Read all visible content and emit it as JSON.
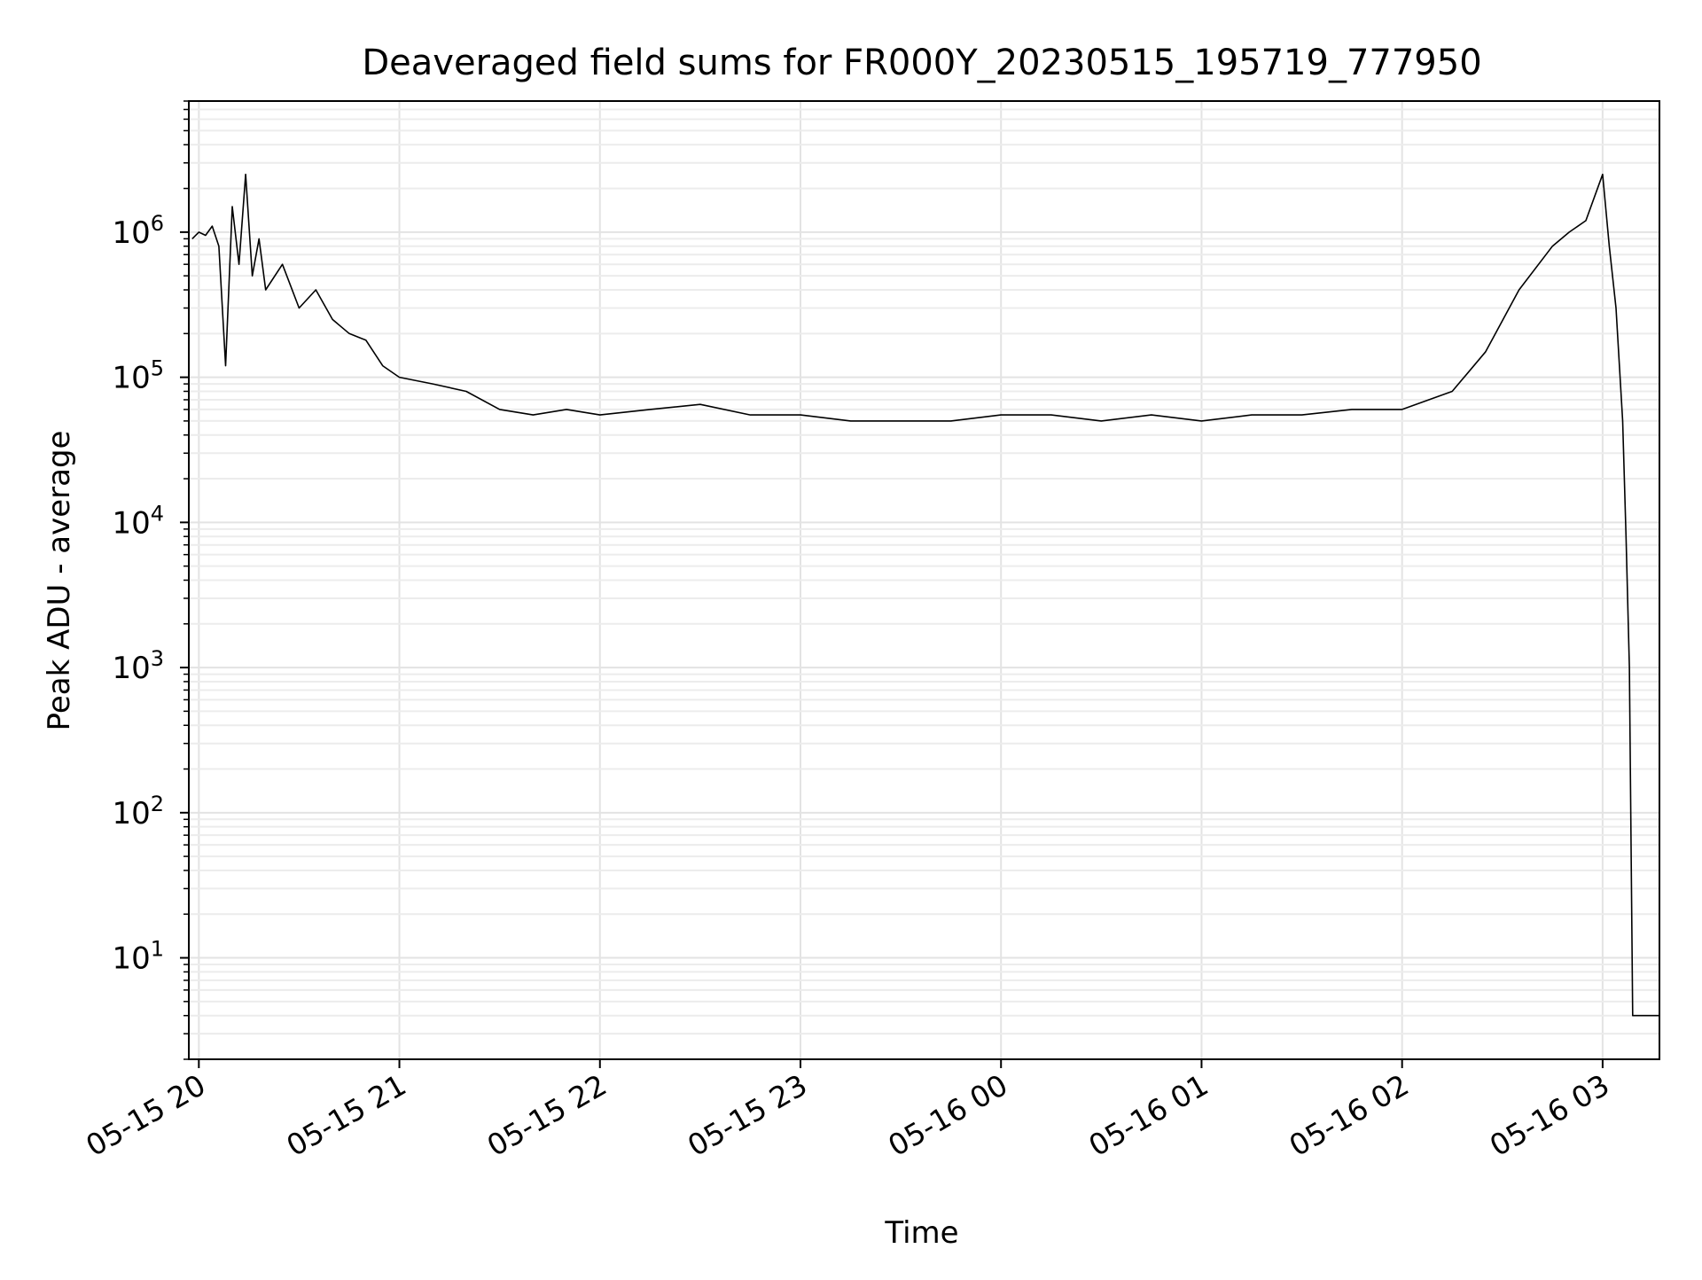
{
  "chart_data": {
    "type": "line",
    "title": "Deaveraged field sums for FR000Y_20230515_195719_777950",
    "xlabel": "Time",
    "ylabel": "Peak ADU - average",
    "yscale": "log",
    "xlim": [
      "2023-05-15 19:57",
      "2023-05-16 03:17"
    ],
    "ylim": [
      2,
      8000000
    ],
    "grid": true,
    "x_ticks": [
      {
        "t": "2023-05-15 20:00",
        "label": "05-15 20"
      },
      {
        "t": "2023-05-15 21:00",
        "label": "05-15 21"
      },
      {
        "t": "2023-05-15 22:00",
        "label": "05-15 22"
      },
      {
        "t": "2023-05-15 23:00",
        "label": "05-15 23"
      },
      {
        "t": "2023-05-16 00:00",
        "label": "05-16 00"
      },
      {
        "t": "2023-05-16 01:00",
        "label": "05-16 01"
      },
      {
        "t": "2023-05-16 02:00",
        "label": "05-16 02"
      },
      {
        "t": "2023-05-16 03:00",
        "label": "05-16 03"
      }
    ],
    "y_ticks": [
      {
        "v": 10,
        "base": "10",
        "exp": "1"
      },
      {
        "v": 100,
        "base": "10",
        "exp": "2"
      },
      {
        "v": 1000,
        "base": "10",
        "exp": "3"
      },
      {
        "v": 10000,
        "base": "10",
        "exp": "4"
      },
      {
        "v": 100000,
        "base": "10",
        "exp": "5"
      },
      {
        "v": 1000000,
        "base": "10",
        "exp": "6"
      }
    ],
    "series": [
      {
        "color": "#000000",
        "points": [
          [
            "2023-05-15 19:58",
            900000
          ],
          [
            "2023-05-15 20:00",
            1000000
          ],
          [
            "2023-05-15 20:02",
            950000
          ],
          [
            "2023-05-15 20:04",
            1100000
          ],
          [
            "2023-05-15 20:06",
            800000
          ],
          [
            "2023-05-15 20:08",
            120000
          ],
          [
            "2023-05-15 20:10",
            1500000
          ],
          [
            "2023-05-15 20:12",
            600000
          ],
          [
            "2023-05-15 20:14",
            2500000
          ],
          [
            "2023-05-15 20:16",
            500000
          ],
          [
            "2023-05-15 20:18",
            900000
          ],
          [
            "2023-05-15 20:20",
            400000
          ],
          [
            "2023-05-15 20:25",
            600000
          ],
          [
            "2023-05-15 20:30",
            300000
          ],
          [
            "2023-05-15 20:35",
            400000
          ],
          [
            "2023-05-15 20:40",
            250000
          ],
          [
            "2023-05-15 20:45",
            200000
          ],
          [
            "2023-05-15 20:50",
            180000
          ],
          [
            "2023-05-15 20:55",
            120000
          ],
          [
            "2023-05-15 21:00",
            100000
          ],
          [
            "2023-05-15 21:10",
            90000
          ],
          [
            "2023-05-15 21:20",
            80000
          ],
          [
            "2023-05-15 21:30",
            60000
          ],
          [
            "2023-05-15 21:40",
            55000
          ],
          [
            "2023-05-15 21:50",
            60000
          ],
          [
            "2023-05-15 22:00",
            55000
          ],
          [
            "2023-05-15 22:15",
            60000
          ],
          [
            "2023-05-15 22:30",
            65000
          ],
          [
            "2023-05-15 22:45",
            55000
          ],
          [
            "2023-05-15 23:00",
            55000
          ],
          [
            "2023-05-15 23:15",
            50000
          ],
          [
            "2023-05-15 23:30",
            50000
          ],
          [
            "2023-05-15 23:45",
            50000
          ],
          [
            "2023-05-16 00:00",
            55000
          ],
          [
            "2023-05-16 00:15",
            55000
          ],
          [
            "2023-05-16 00:30",
            50000
          ],
          [
            "2023-05-16 00:45",
            55000
          ],
          [
            "2023-05-16 01:00",
            50000
          ],
          [
            "2023-05-16 01:15",
            55000
          ],
          [
            "2023-05-16 01:30",
            55000
          ],
          [
            "2023-05-16 01:45",
            60000
          ],
          [
            "2023-05-16 02:00",
            60000
          ],
          [
            "2023-05-16 02:15",
            80000
          ],
          [
            "2023-05-16 02:25",
            150000
          ],
          [
            "2023-05-16 02:35",
            400000
          ],
          [
            "2023-05-16 02:45",
            800000
          ],
          [
            "2023-05-16 02:50",
            1000000
          ],
          [
            "2023-05-16 02:55",
            1200000
          ],
          [
            "2023-05-16 03:00",
            2500000
          ],
          [
            "2023-05-16 03:02",
            800000
          ],
          [
            "2023-05-16 03:04",
            300000
          ],
          [
            "2023-05-16 03:06",
            50000
          ],
          [
            "2023-05-16 03:07",
            8000
          ],
          [
            "2023-05-16 03:08",
            1000
          ],
          [
            "2023-05-16 03:09",
            4
          ],
          [
            "2023-05-16 03:17",
            4
          ]
        ]
      }
    ]
  }
}
